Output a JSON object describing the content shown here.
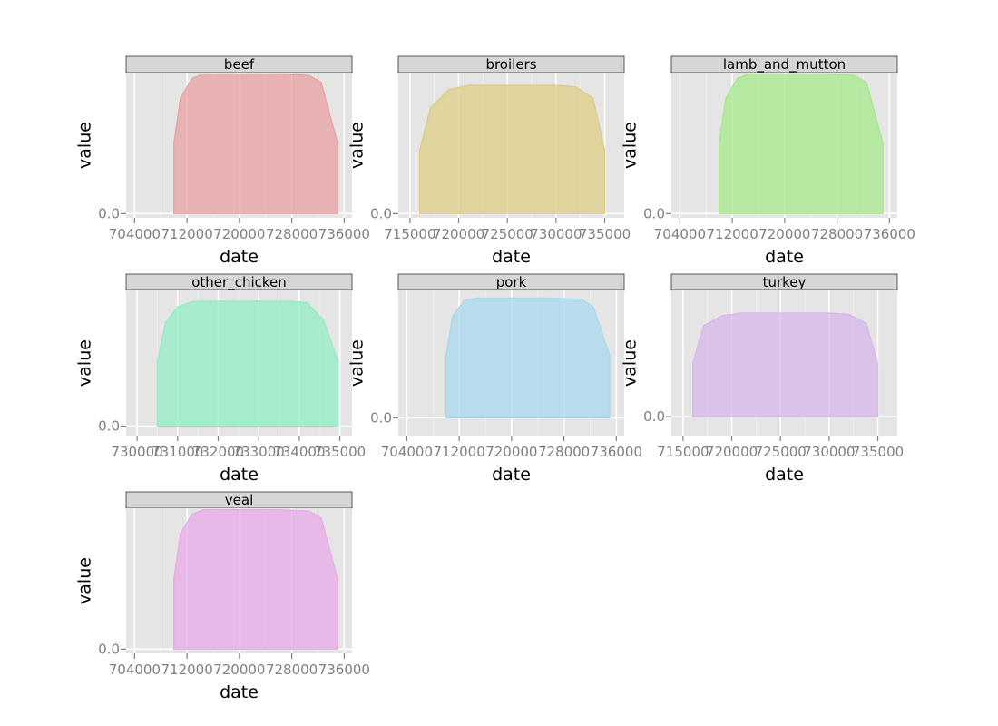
{
  "chart_data": {
    "type": "area",
    "xlabel": "date",
    "ylabel": "value",
    "panels": [
      {
        "name": "beef",
        "color": "#e8a0a0",
        "xticks": [
          704000,
          712000,
          720000,
          728000,
          736000
        ],
        "xlim": [
          702700,
          737200
        ],
        "yticks": [
          0.0
        ],
        "ytick_labels": [
          "0.0"
        ],
        "ylim": [
          -0.03,
          1.0
        ],
        "x": [
          710000,
          711000,
          712800,
          714500,
          726000,
          730700,
          732500,
          735000
        ],
        "y": [
          0.5,
          0.82,
          0.96,
          0.99,
          0.99,
          0.98,
          0.93,
          0.5
        ]
      },
      {
        "name": "broilers",
        "color": "#dccc86",
        "xticks": [
          715000,
          720000,
          725000,
          730000,
          735000
        ],
        "xlim": [
          713800,
          737000
        ],
        "yticks": [
          0.0
        ],
        "ytick_labels": [
          "0.0"
        ],
        "ylim": [
          -0.03,
          1.0
        ],
        "x": [
          716000,
          717100,
          719000,
          721000,
          730000,
          732000,
          733800,
          735000
        ],
        "y": [
          0.45,
          0.75,
          0.88,
          0.91,
          0.91,
          0.9,
          0.82,
          0.45
        ]
      },
      {
        "name": "lamb_and_mutton",
        "color": "#a6e88a",
        "xticks": [
          704000,
          712000,
          720000,
          728000,
          736000
        ],
        "xlim": [
          702700,
          737200
        ],
        "yticks": [
          0.0
        ],
        "ytick_labels": [
          "0.0"
        ],
        "ylim": [
          -0.03,
          1.0
        ],
        "x": [
          710000,
          711000,
          712800,
          714500,
          726000,
          730700,
          732500,
          735000
        ],
        "y": [
          0.5,
          0.82,
          0.96,
          0.99,
          0.99,
          0.98,
          0.93,
          0.5
        ]
      },
      {
        "name": "other_chicken",
        "color": "#92ebc3",
        "xticks": [
          730000,
          731000,
          732000,
          733000,
          734000,
          735000
        ],
        "xlim": [
          729730,
          735300
        ],
        "yticks": [
          0.0
        ],
        "ytick_labels": [
          "0.0"
        ],
        "ylim": [
          -0.07,
          1.0
        ],
        "x": [
          730500,
          730700,
          731000,
          731400,
          733800,
          734200,
          734600,
          734950
        ],
        "y": [
          0.48,
          0.76,
          0.88,
          0.92,
          0.92,
          0.91,
          0.78,
          0.48
        ]
      },
      {
        "name": "pork",
        "color": "#a8d8ec",
        "xticks": [
          704000,
          712000,
          720000,
          728000,
          736000
        ],
        "xlim": [
          702700,
          737200
        ],
        "yticks": [
          0.0
        ],
        "ytick_labels": [
          "0.0"
        ],
        "ylim": [
          -0.14,
          1.0
        ],
        "x": [
          710000,
          711000,
          712800,
          714500,
          726000,
          730700,
          732500,
          735000
        ],
        "y": [
          0.49,
          0.8,
          0.92,
          0.94,
          0.94,
          0.93,
          0.87,
          0.49
        ]
      },
      {
        "name": "turkey",
        "color": "#d5b5ea",
        "xticks": [
          715000,
          720000,
          725000,
          730000,
          735000
        ],
        "xlim": [
          713800,
          737000
        ],
        "yticks": [
          0.0
        ],
        "ytick_labels": [
          "0.0"
        ],
        "ylim": [
          -0.15,
          1.0
        ],
        "x": [
          716000,
          717100,
          719000,
          721000,
          730000,
          732000,
          733800,
          735000
        ],
        "y": [
          0.42,
          0.72,
          0.8,
          0.82,
          0.82,
          0.81,
          0.74,
          0.42
        ]
      },
      {
        "name": "veal",
        "color": "#e8a8e8",
        "xticks": [
          704000,
          712000,
          720000,
          728000,
          736000
        ],
        "xlim": [
          702700,
          737200
        ],
        "yticks": [
          0.0
        ],
        "ytick_labels": [
          "0.0"
        ],
        "ylim": [
          -0.03,
          1.0
        ],
        "x": [
          710000,
          711000,
          712800,
          714500,
          726000,
          730700,
          732500,
          735000
        ],
        "y": [
          0.5,
          0.82,
          0.96,
          0.99,
          0.99,
          0.98,
          0.93,
          0.5
        ]
      }
    ]
  }
}
